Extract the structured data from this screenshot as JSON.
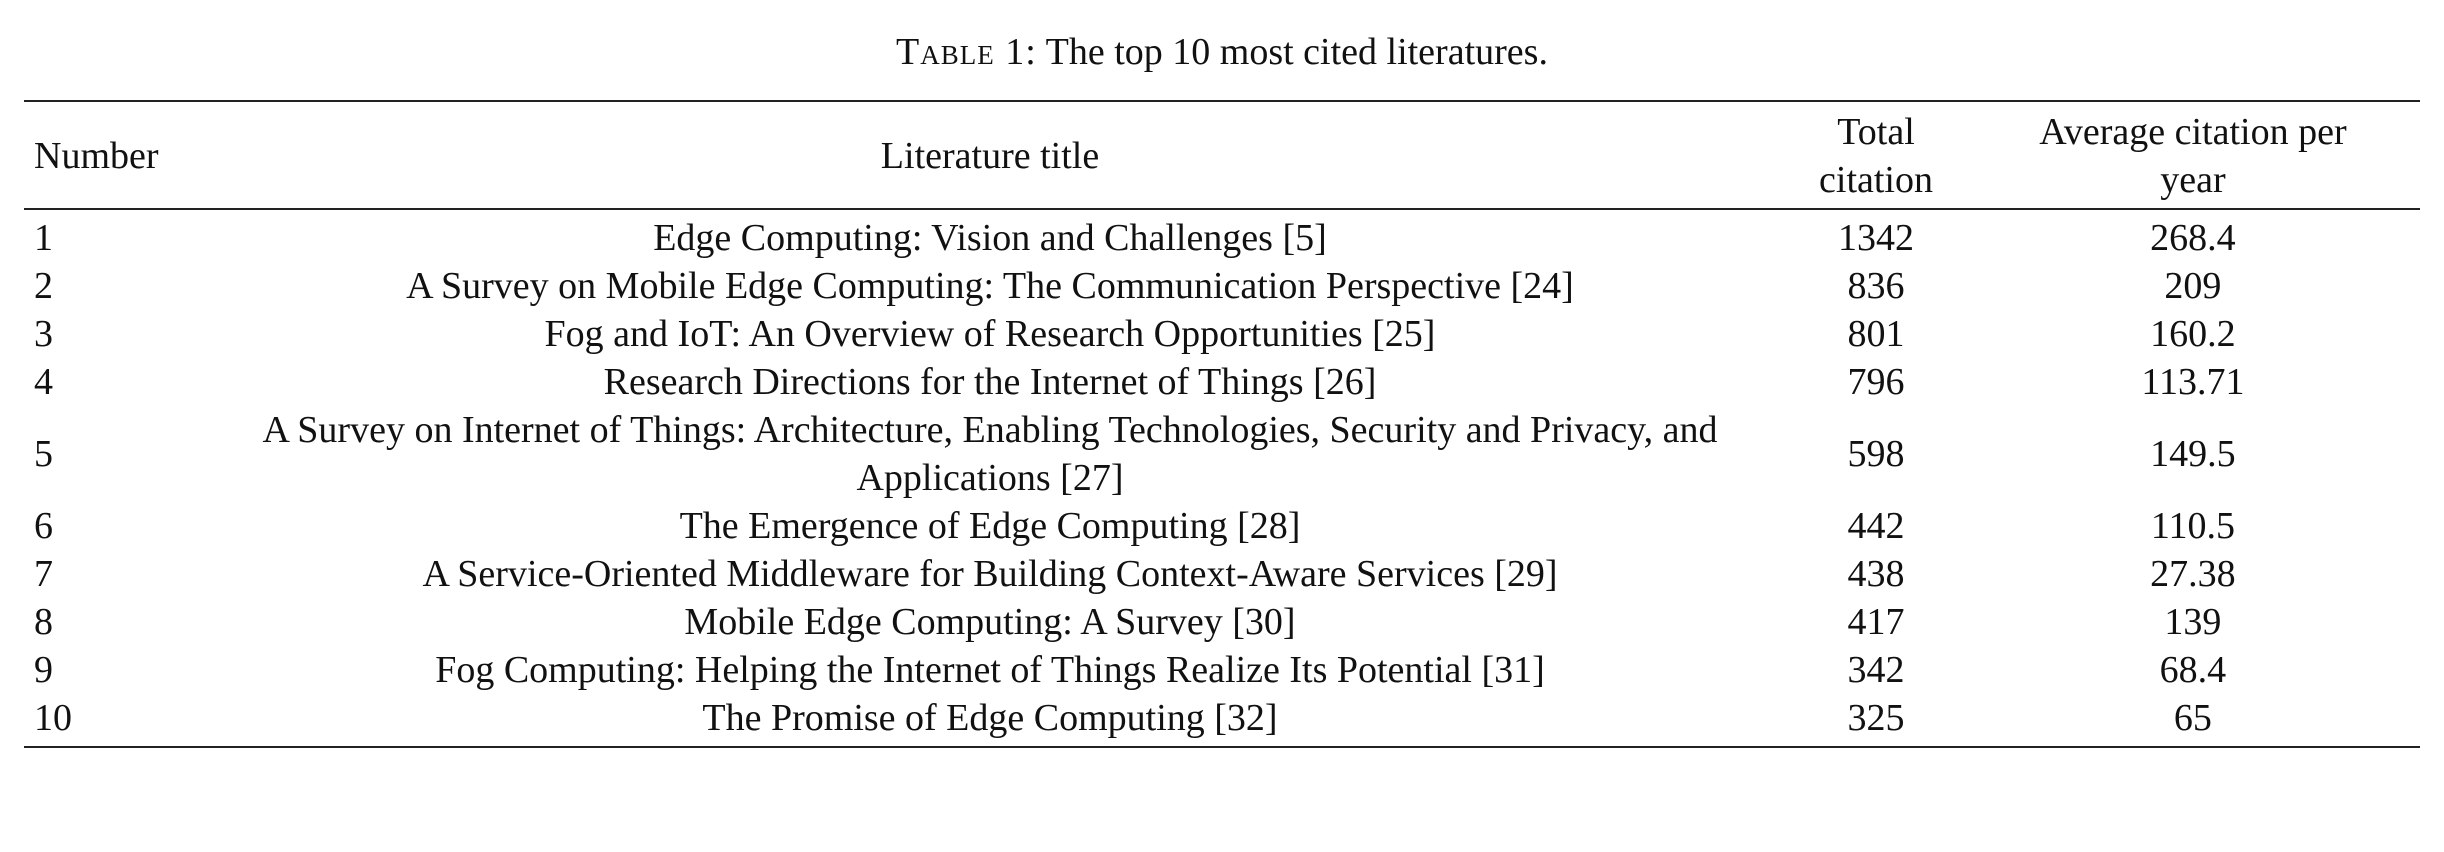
{
  "caption": {
    "label": "Table 1:",
    "text": " The top 10 most cited literatures."
  },
  "headers": {
    "number": "Number",
    "title": "Literature title",
    "total_line1": "Total",
    "total_line2": "citation",
    "avg_line1": "Average citation per",
    "avg_line2": "year"
  },
  "rows": [
    {
      "number": "1",
      "title": "Edge Computing: Vision and Challenges [5]",
      "total": "1342",
      "avg": "268.4"
    },
    {
      "number": "2",
      "title": "A Survey on Mobile Edge Computing: The Communication Perspective [24]",
      "total": "836",
      "avg": "209"
    },
    {
      "number": "3",
      "title": "Fog and IoT: An Overview of Research Opportunities [25]",
      "total": "801",
      "avg": "160.2"
    },
    {
      "number": "4",
      "title": "Research Directions for the Internet of Things [26]",
      "total": "796",
      "avg": "113.71"
    },
    {
      "number": "5",
      "title_line1": "A Survey on Internet of Things: Architecture, Enabling Technologies, Security and Privacy,",
      "title_line2": "and Applications [27]",
      "total": "598",
      "avg": "149.5"
    },
    {
      "number": "6",
      "title": "The Emergence of Edge Computing [28]",
      "total": "442",
      "avg": "110.5"
    },
    {
      "number": "7",
      "title": "A Service-Oriented Middleware for Building Context-Aware Services [29]",
      "total": "438",
      "avg": "27.38"
    },
    {
      "number": "8",
      "title": "Mobile Edge Computing: A Survey [30]",
      "total": "417",
      "avg": "139"
    },
    {
      "number": "9",
      "title": "Fog Computing: Helping the Internet of Things Realize Its Potential [31]",
      "total": "342",
      "avg": "68.4"
    },
    {
      "number": "10",
      "title": "The Promise of Edge Computing [32]",
      "total": "325",
      "avg": "65"
    }
  ]
}
